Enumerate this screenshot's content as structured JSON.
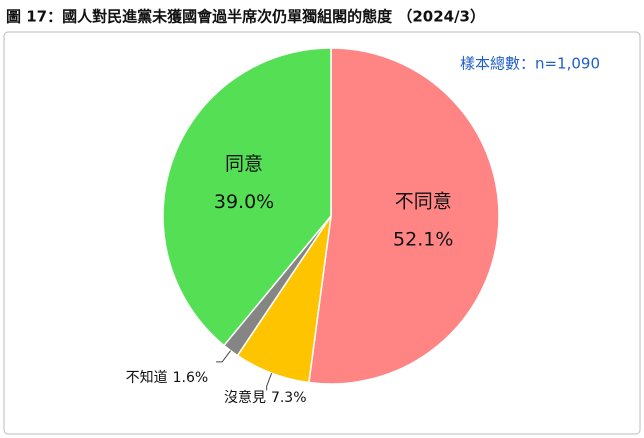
{
  "chart_data": {
    "type": "pie",
    "title": "圖 17：國人對民進黨未獲國會過半席次仍單獨組閣的態度 （2024/3）",
    "note": "樣本總數：n=1,090",
    "categories": [
      "不同意",
      "沒意見",
      "不知道",
      "同意"
    ],
    "values": [
      52.1,
      7.3,
      1.6,
      39.0
    ],
    "value_labels": [
      "52.1%",
      "7.3%",
      "1.6%",
      "39.0%"
    ],
    "colors": [
      "#ff8585",
      "#ffc400",
      "#858585",
      "#55df55"
    ]
  }
}
